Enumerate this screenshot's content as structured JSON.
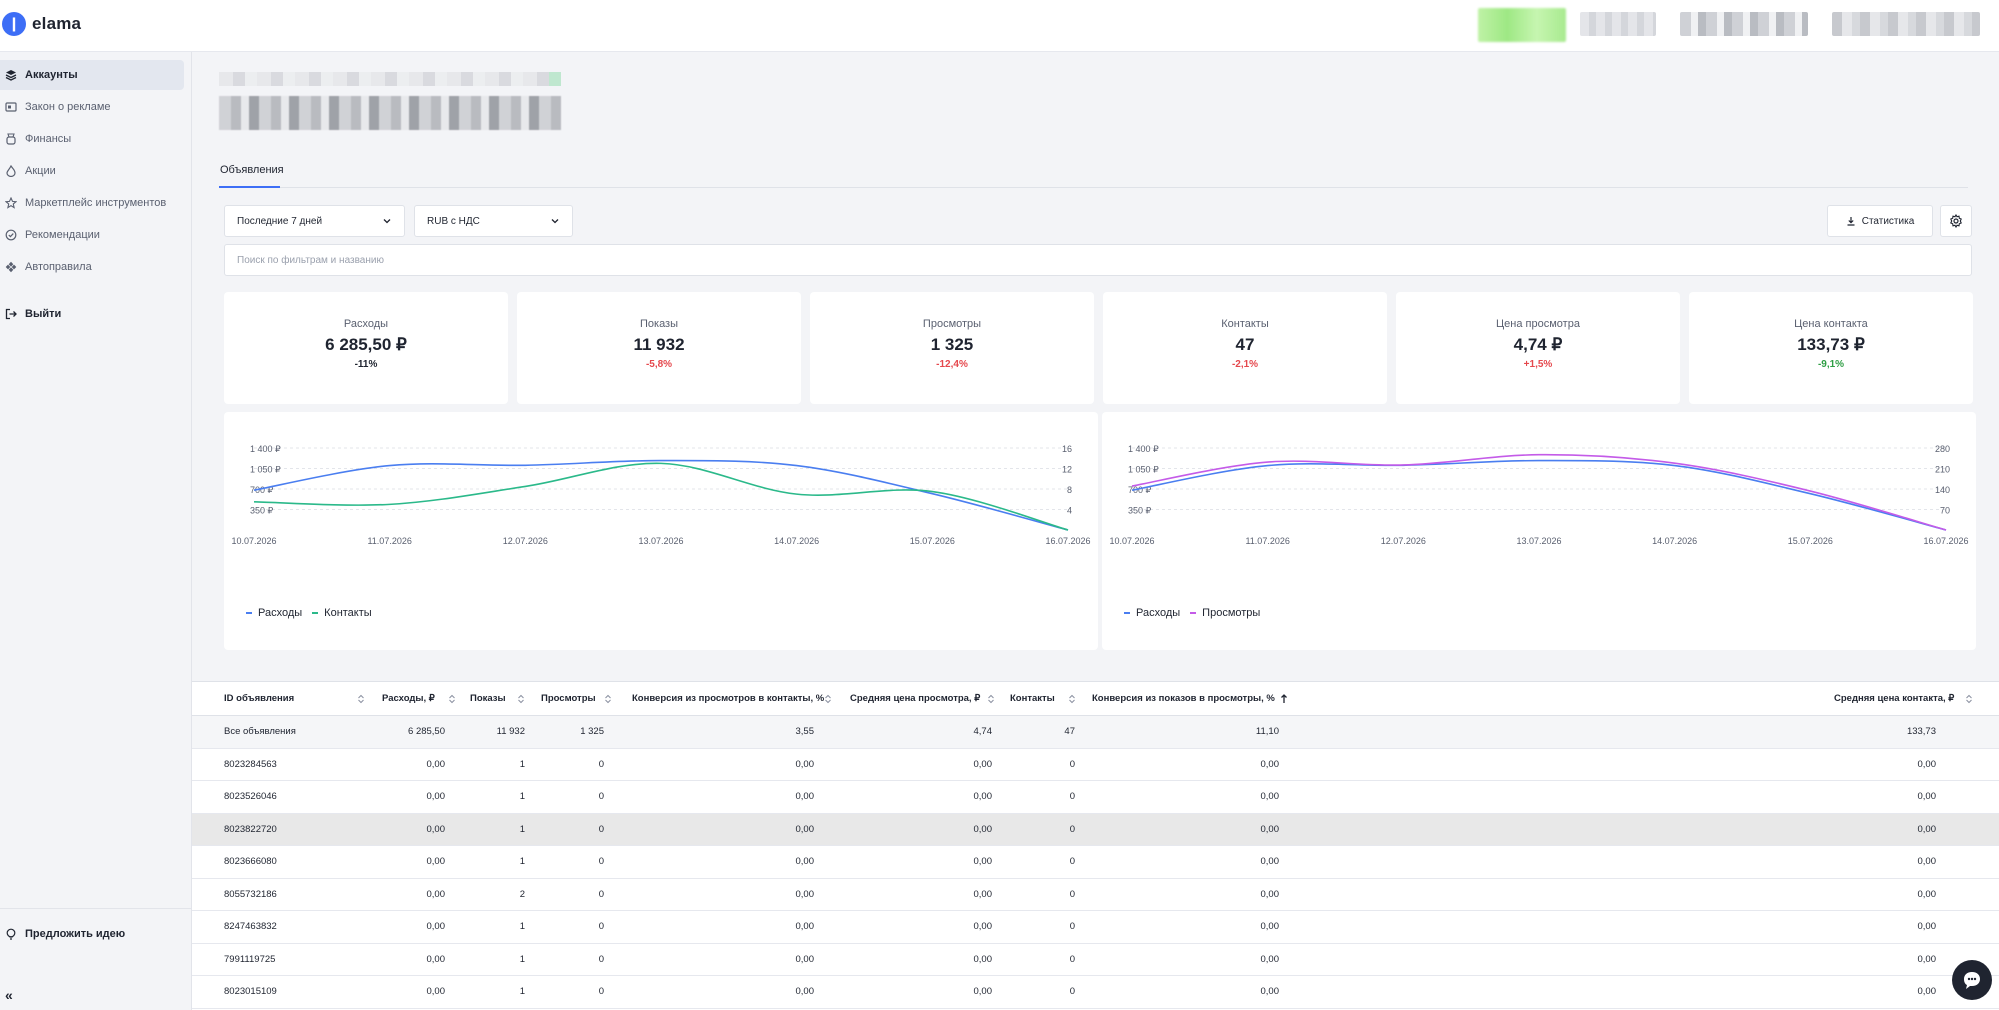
{
  "app": {
    "logo_text": "elama"
  },
  "sidebar": {
    "items": [
      {
        "label": "Аккаунты",
        "icon": "layers-icon"
      },
      {
        "label": "Закон о рекламе",
        "icon": "id-card-icon"
      },
      {
        "label": "Финансы",
        "icon": "wallet-icon"
      },
      {
        "label": "Акции",
        "icon": "flame-icon"
      },
      {
        "label": "Маркетплейс инструментов",
        "icon": "star-icon"
      },
      {
        "label": "Рекомендации",
        "icon": "check-circle-icon"
      },
      {
        "label": "Автоправила",
        "icon": "diamond-grid-icon"
      }
    ],
    "logout": "Выйти",
    "idea": "Предложить идею",
    "collapse": "«"
  },
  "tabs": [
    {
      "label": "Объявления"
    }
  ],
  "filters": {
    "period": "Последние 7 дней",
    "currency": "RUB с НДС",
    "export_label": "Статистика",
    "search_placeholder": "Поиск по фильтрам и названию"
  },
  "stats": [
    {
      "label": "Расходы",
      "value": "6 285,50 ₽",
      "delta": "-11%",
      "delta_color": "#1f2430"
    },
    {
      "label": "Показы",
      "value": "11 932",
      "delta": "-5,8%",
      "delta_color": "#e5484d"
    },
    {
      "label": "Просмотры",
      "value": "1 325",
      "delta": "-12,4%",
      "delta_color": "#e5484d"
    },
    {
      "label": "Контакты",
      "value": "47",
      "delta": "-2,1%",
      "delta_color": "#e5484d"
    },
    {
      "label": "Цена просмотра",
      "value": "4,74 ₽",
      "delta": "+1,5%",
      "delta_color": "#e5484d"
    },
    {
      "label": "Цена контакта",
      "value": "133,73 ₽",
      "delta": "-9,1%",
      "delta_color": "#2f9e44"
    }
  ],
  "colors": {
    "accent": "#3d6ef6",
    "spend": "#4a7ef0",
    "contacts": "#2bb98a",
    "views": "#c45be8"
  },
  "chart_data": [
    {
      "type": "line",
      "categories": [
        "10.07.2026",
        "11.07.2026",
        "12.07.2026",
        "13.07.2026",
        "14.07.2026",
        "15.07.2026",
        "16.07.2026"
      ],
      "y_ticks_left": [
        "1 400 ₽",
        "1 050 ₽",
        "700 ₽",
        "350 ₽"
      ],
      "y_ticks_right": [
        "16",
        "12",
        "8",
        "4"
      ],
      "ylim_left": [
        0,
        1400
      ],
      "ylim_right": [
        0,
        16
      ],
      "series": [
        {
          "name": "Расходы",
          "axis": "left",
          "color": "#4a7ef0",
          "values": [
            680,
            1100,
            1105,
            1185,
            1100,
            620,
            0
          ]
        },
        {
          "name": "Контакты",
          "axis": "right",
          "color": "#2bb98a",
          "values": [
            5.5,
            5,
            8.5,
            13,
            7,
            7.5,
            0
          ]
        }
      ],
      "legend": "bottom-left"
    },
    {
      "type": "line",
      "categories": [
        "10.07.2026",
        "11.07.2026",
        "12.07.2026",
        "13.07.2026",
        "14.07.2026",
        "15.07.2026",
        "16.07.2026"
      ],
      "y_ticks_left": [
        "1 400 ₽",
        "1 050 ₽",
        "700 ₽",
        "350 ₽"
      ],
      "y_ticks_right": [
        "280",
        "210",
        "140",
        "70"
      ],
      "ylim_left": [
        0,
        1400
      ],
      "ylim_right": [
        0,
        280
      ],
      "series": [
        {
          "name": "Расходы",
          "axis": "left",
          "color": "#4a7ef0",
          "values": [
            680,
            1100,
            1105,
            1185,
            1100,
            620,
            0
          ]
        },
        {
          "name": "Просмотры",
          "axis": "right",
          "color": "#c45be8",
          "values": [
            150,
            232,
            222,
            257,
            228,
            133,
            0
          ]
        }
      ],
      "legend": "bottom-left"
    }
  ],
  "table": {
    "headers": [
      "ID объявления",
      "Расходы, ₽",
      "Показы",
      "Просмотры",
      "Конверсия из просмотров в контакты, %",
      "Средняя цена просмотра, ₽",
      "Контакты",
      "Конверсия из показов в просмотры, %",
      "Средняя цена контакта, ₽"
    ],
    "rows": [
      [
        "Все объявления",
        "6 285,50",
        "11 932",
        "1 325",
        "3,55",
        "4,74",
        "47",
        "11,10",
        "133,73"
      ],
      [
        "8023284563",
        "0,00",
        "1",
        "0",
        "0,00",
        "0,00",
        "0",
        "0,00",
        "0,00"
      ],
      [
        "8023526046",
        "0,00",
        "1",
        "0",
        "0,00",
        "0,00",
        "0",
        "0,00",
        "0,00"
      ],
      [
        "8023822720",
        "0,00",
        "1",
        "0",
        "0,00",
        "0,00",
        "0",
        "0,00",
        "0,00"
      ],
      [
        "8023666080",
        "0,00",
        "1",
        "0",
        "0,00",
        "0,00",
        "0",
        "0,00",
        "0,00"
      ],
      [
        "8055732186",
        "0,00",
        "2",
        "0",
        "0,00",
        "0,00",
        "0",
        "0,00",
        "0,00"
      ],
      [
        "8247463832",
        "0,00",
        "1",
        "0",
        "0,00",
        "0,00",
        "0",
        "0,00",
        "0,00"
      ],
      [
        "7991119725",
        "0,00",
        "1",
        "0",
        "0,00",
        "0,00",
        "0",
        "0,00",
        "0,00"
      ],
      [
        "8023015109",
        "0,00",
        "1",
        "0",
        "0,00",
        "0,00",
        "0",
        "0,00",
        "0,00"
      ]
    ]
  }
}
